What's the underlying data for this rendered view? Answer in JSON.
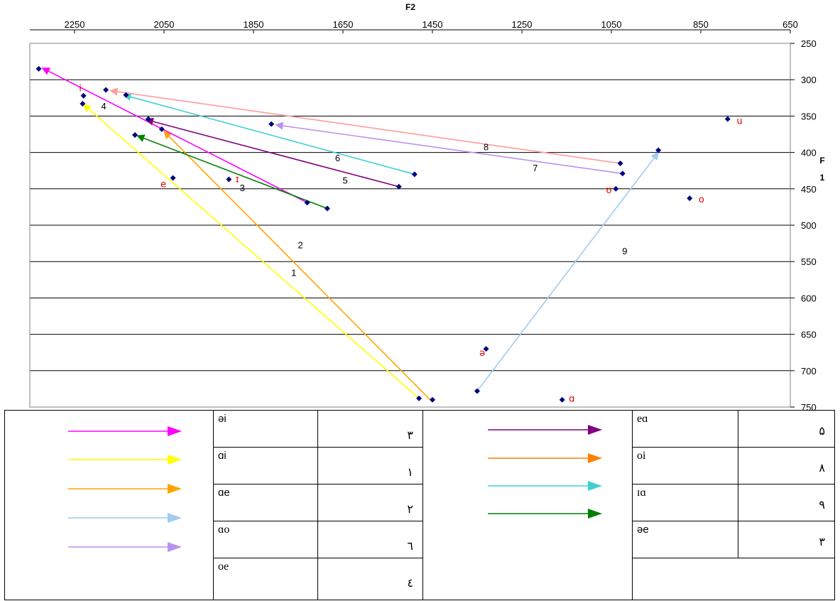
{
  "chart_data": {
    "type": "scatter",
    "xlabel": "F2",
    "ylabel_line1": "F",
    "ylabel_line2": "1",
    "xlim": [
      2350,
      650
    ],
    "ylim": [
      250,
      750
    ],
    "x_ticks": [
      "2250",
      "2050",
      "1850",
      "1650",
      "1450",
      "1250",
      "1050",
      "850",
      "650"
    ],
    "x_tick_values": [
      2250,
      2050,
      1850,
      1650,
      1450,
      1250,
      1050,
      850,
      650
    ],
    "y_ticks": [
      "250",
      "300",
      "350",
      "400",
      "450",
      "500",
      "550",
      "600",
      "650",
      "700",
      "750"
    ],
    "y_tick_values": [
      250,
      300,
      350,
      400,
      450,
      500,
      550,
      600,
      650,
      700,
      750
    ],
    "grid": "horizontal",
    "points": [
      {
        "x": 2330,
        "y": 285
      },
      {
        "x": 2230,
        "y": 322
      },
      {
        "x": 2232,
        "y": 333
      },
      {
        "x": 2180,
        "y": 314
      },
      {
        "x": 2135,
        "y": 321
      },
      {
        "x": 2085,
        "y": 354
      },
      {
        "x": 2055,
        "y": 368
      },
      {
        "x": 2115,
        "y": 376
      },
      {
        "x": 2030,
        "y": 435
      },
      {
        "x": 1905,
        "y": 437
      },
      {
        "x": 1810,
        "y": 361
      },
      {
        "x": 1730,
        "y": 469
      },
      {
        "x": 1685,
        "y": 477
      },
      {
        "x": 1525,
        "y": 447
      },
      {
        "x": 1490,
        "y": 430
      },
      {
        "x": 1480,
        "y": 738
      },
      {
        "x": 1450,
        "y": 740
      },
      {
        "x": 1350,
        "y": 728
      },
      {
        "x": 1330,
        "y": 670
      },
      {
        "x": 1160,
        "y": 740
      },
      {
        "x": 1030,
        "y": 415
      },
      {
        "x": 1025,
        "y": 429
      },
      {
        "x": 1040,
        "y": 450
      },
      {
        "x": 945,
        "y": 397
      },
      {
        "x": 875,
        "y": 463
      },
      {
        "x": 790,
        "y": 354
      }
    ],
    "vowel_labels": [
      {
        "text": "i",
        "x": 2240,
        "y": 312
      },
      {
        "text": "e",
        "x": 2058,
        "y": 444
      },
      {
        "text": "ɪ",
        "x": 1890,
        "y": 437
      },
      {
        "text": "ʊ",
        "x": 1062,
        "y": 452
      },
      {
        "text": "u",
        "x": 770,
        "y": 357
      },
      {
        "text": "o",
        "x": 855,
        "y": 465
      },
      {
        "text": "ə",
        "x": 1345,
        "y": 676
      },
      {
        "text": "ɑ",
        "x": 1145,
        "y": 739
      }
    ],
    "trajectories": [
      {
        "label": "1",
        "color": "#ffff00",
        "x1": 1480,
        "y1": 738,
        "x2": 2230,
        "y2": 334,
        "lx": 1760,
        "ly": 565
      },
      {
        "label": "2",
        "color": "#ffa500",
        "x1": 1455,
        "y1": 740,
        "x2": 2050,
        "y2": 371,
        "lx": 1745,
        "ly": 527
      },
      {
        "label": "3",
        "color": "#ff00ff",
        "x1": 1730,
        "y1": 469,
        "x2": 2322,
        "y2": 284,
        "lx": 1875,
        "ly": 448
      },
      {
        "label": "4",
        "color": "#008000",
        "x1": 1685,
        "y1": 477,
        "x2": 2110,
        "y2": 377,
        "lx": 2185,
        "ly": 336
      },
      {
        "label": "5",
        "color": "#800080",
        "x1": 1525,
        "y1": 447,
        "x2": 2090,
        "y2": 355,
        "lx": 1645,
        "ly": 438
      },
      {
        "label": "6",
        "color": "#40d0d0",
        "x1": 1490,
        "y1": 430,
        "x2": 2140,
        "y2": 321,
        "lx": 1662,
        "ly": 407
      },
      {
        "label": "7",
        "color": "#b894f0",
        "x1": 1025,
        "y1": 429,
        "x2": 1800,
        "y2": 362,
        "lx": 1220,
        "ly": 421
      },
      {
        "label": "8",
        "color": "#ff9c9c",
        "x1": 1030,
        "y1": 415,
        "x2": 2170,
        "y2": 315,
        "lx": 1330,
        "ly": 392
      },
      {
        "label": "9",
        "color": "#a0ccf0",
        "x1": 1350,
        "y1": 728,
        "x2": 945,
        "y2": 400,
        "lx": 1020,
        "ly": 535
      }
    ]
  },
  "legend": {
    "left_arrows": [
      "#ff00ff",
      "#ffff00",
      "#ffa500",
      "#a0ccf0",
      "#b894f0"
    ],
    "right_arrows": [
      "#800080",
      "#ff7f00",
      "#40d0d0",
      "#008000"
    ],
    "left_rows": [
      {
        "symbol": "əi",
        "number": "۳"
      },
      {
        "symbol": "ɑi",
        "number": "۱"
      },
      {
        "symbol": "ɑe",
        "number": "۲"
      },
      {
        "symbol": "ɑo",
        "number": "٦"
      },
      {
        "symbol": "oe",
        "number": "٤"
      }
    ],
    "right_rows": [
      {
        "symbol": "eɑ",
        "number": "۵"
      },
      {
        "symbol": "oi",
        "number": "۸"
      },
      {
        "symbol": "ɪɑ",
        "number": "۹"
      },
      {
        "symbol": "əe",
        "number": "۳"
      }
    ]
  }
}
